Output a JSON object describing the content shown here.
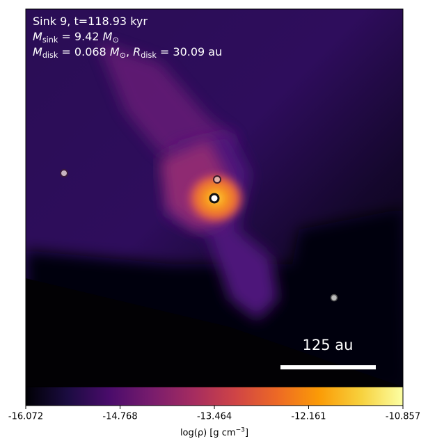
{
  "chart_data": {
    "type": "image",
    "annotations": [
      [
        {
          "text": "Sink 9, t=118.93 kyr"
        }
      ],
      [
        {
          "text": "M",
          "style": "italic"
        },
        {
          "text": "sink",
          "style": "sub"
        },
        {
          "text": " = 9.42 "
        },
        {
          "text": "M",
          "style": "italic"
        },
        {
          "text": "⊙",
          "style": "sub"
        }
      ],
      [
        {
          "text": "M",
          "style": "italic"
        },
        {
          "text": "disk",
          "style": "sub"
        },
        {
          "text": " = 0.068 "
        },
        {
          "text": "M",
          "style": "italic"
        },
        {
          "text": "⊙",
          "style": "sub"
        },
        {
          "text": ", "
        },
        {
          "text": "R",
          "style": "italic"
        },
        {
          "text": "disk",
          "style": "sub"
        },
        {
          "text": " = 30.09 au"
        }
      ]
    ],
    "scale_bar_label": "125 au",
    "colorbar": {
      "label": [
        {
          "text": "log(ρ) [g cm"
        },
        {
          "text": "−3",
          "style": "sup"
        },
        {
          "text": "]"
        }
      ],
      "lim": [
        -16.072,
        -10.857
      ],
      "ticks": [
        -16.072,
        -14.768,
        -13.464,
        -12.161,
        -10.857
      ],
      "colormap": [
        "#000004",
        "#1b0c41",
        "#4a0c6b",
        "#781c6d",
        "#a52c60",
        "#cf4446",
        "#ed6925",
        "#fb9b06",
        "#f7d13d",
        "#fcffa4"
      ]
    }
  }
}
